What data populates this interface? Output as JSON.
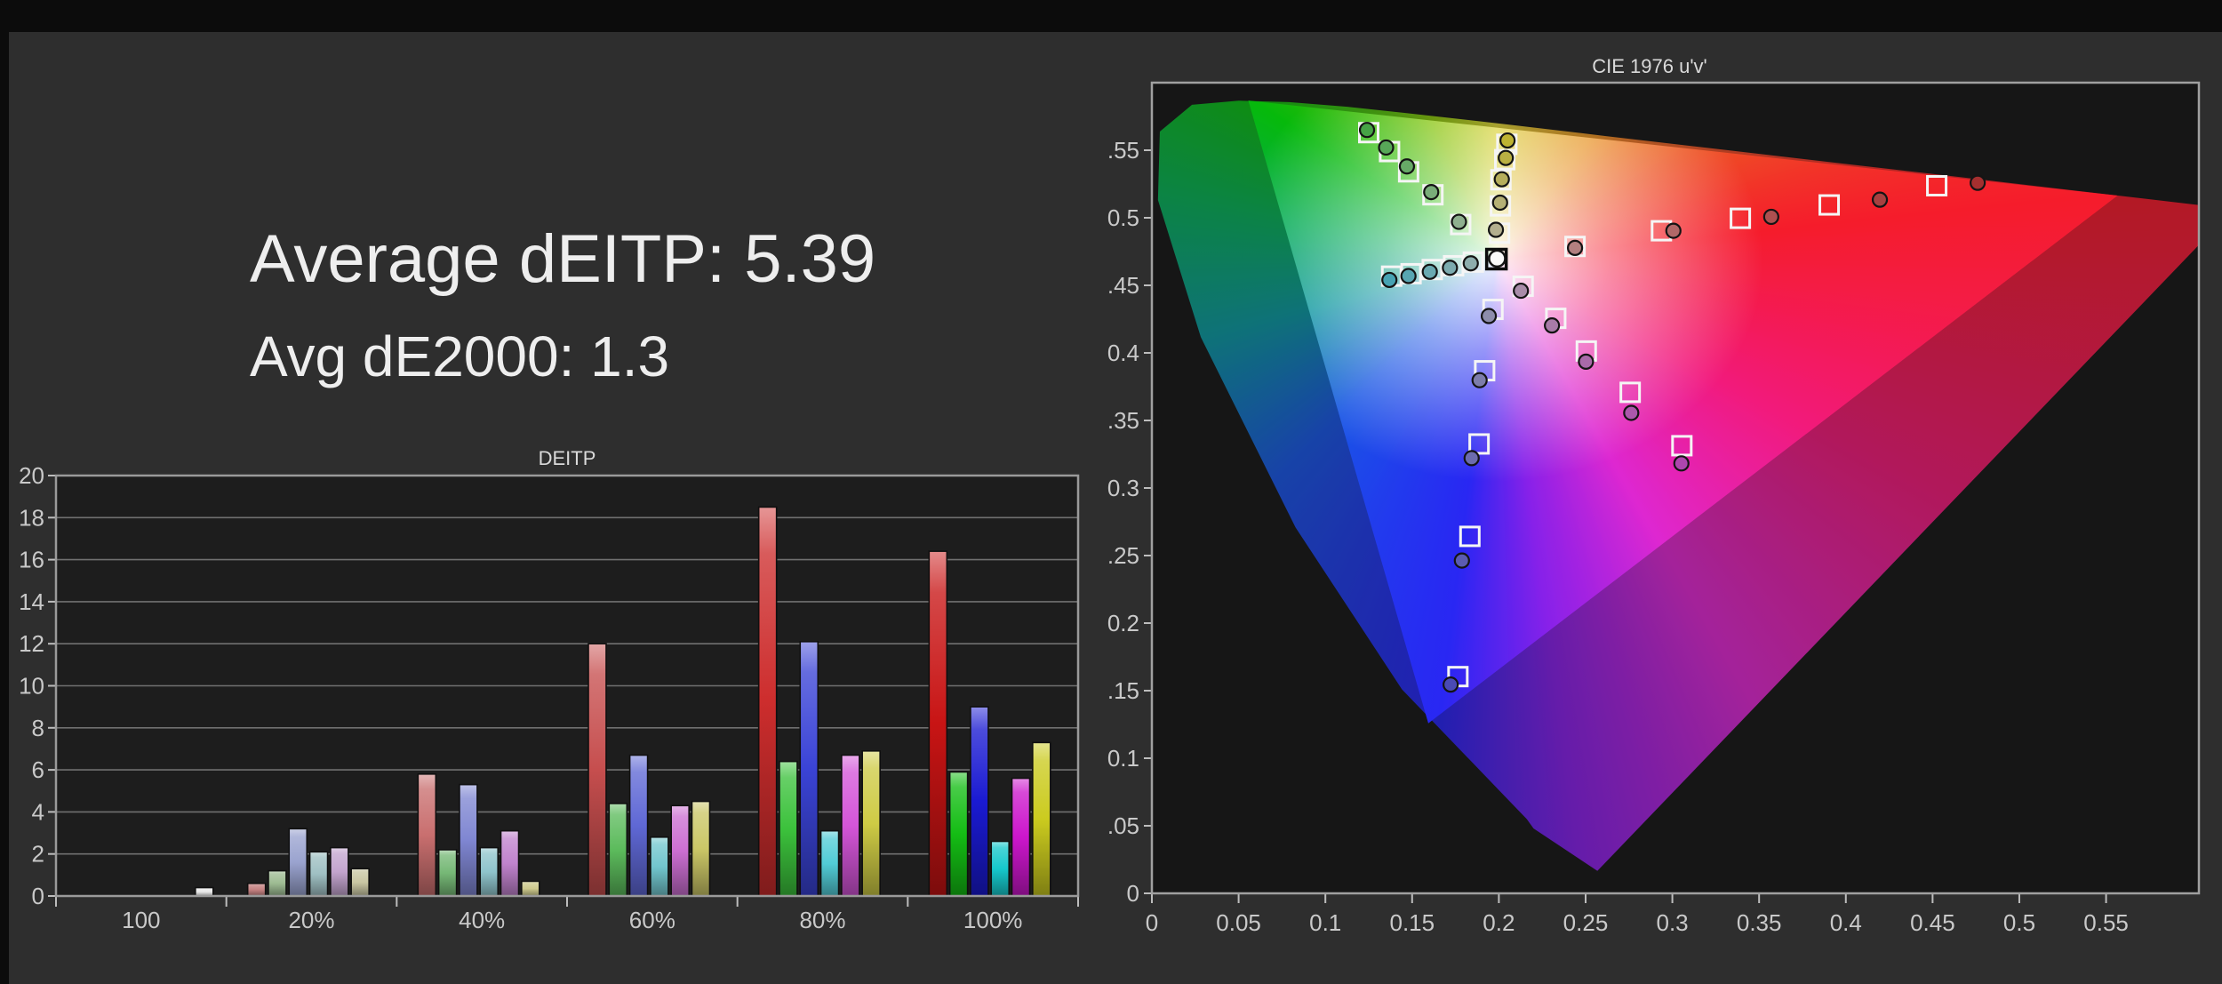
{
  "page": {
    "background": "#0c0c0c",
    "panel_color": "#2e2e2e",
    "top_strip": "#0c0c0c"
  },
  "summary": {
    "line1": "Average dEITP: 5.39",
    "line2": "Avg dE2000: 1.3",
    "avg_deitp": 5.39,
    "avg_de2000": 1.3
  },
  "chart_data": [
    {
      "type": "bar",
      "title": "DEITP",
      "xlabel": "",
      "ylabel": "",
      "ylim": [
        0,
        20
      ],
      "ytick_step": 2,
      "grid": "horizontal",
      "legend": "none",
      "plot_bg": "#1d1d1d",
      "grid_color": "#707070",
      "border_color": "#9a9a9a",
      "categories": [
        "100",
        "20%",
        "40%",
        "60%",
        "80%",
        "100%"
      ],
      "groups": [
        {
          "label": "100",
          "bars": [
            {
              "name": "white",
              "value": 0.4,
              "color": "#e9e9e9",
              "slot": 5.7
            }
          ]
        },
        {
          "label": "20%",
          "bars": [
            {
              "name": "red",
              "value": 0.6,
              "color": "#c58282"
            },
            {
              "name": "green",
              "value": 1.2,
              "color": "#9dbb92"
            },
            {
              "name": "blue",
              "value": 3.2,
              "color": "#9aa3cf"
            },
            {
              "name": "cyan",
              "value": 2.1,
              "color": "#9fc0c3"
            },
            {
              "name": "magenta",
              "value": 2.3,
              "color": "#c3a4ce"
            },
            {
              "name": "yellow",
              "value": 1.3,
              "color": "#c9c6a3"
            }
          ]
        },
        {
          "label": "40%",
          "bars": [
            {
              "name": "red",
              "value": 5.8,
              "color": "#c96f6f"
            },
            {
              "name": "green",
              "value": 2.2,
              "color": "#76b876"
            },
            {
              "name": "blue",
              "value": 5.3,
              "color": "#7f86d2"
            },
            {
              "name": "cyan",
              "value": 2.3,
              "color": "#8fc4cc"
            },
            {
              "name": "magenta",
              "value": 3.1,
              "color": "#c083cd"
            },
            {
              "name": "yellow",
              "value": 0.7,
              "color": "#cdc98c"
            }
          ]
        },
        {
          "label": "60%",
          "bars": [
            {
              "name": "red",
              "value": 12.0,
              "color": "#c64e4e"
            },
            {
              "name": "green",
              "value": 4.4,
              "color": "#5cbb5c"
            },
            {
              "name": "blue",
              "value": 6.7,
              "color": "#5f68d5"
            },
            {
              "name": "cyan",
              "value": 2.8,
              "color": "#72c6ce"
            },
            {
              "name": "magenta",
              "value": 4.3,
              "color": "#cc6fd2"
            },
            {
              "name": "yellow",
              "value": 4.5,
              "color": "#cbc767"
            }
          ]
        },
        {
          "label": "80%",
          "bars": [
            {
              "name": "red",
              "value": 18.5,
              "color": "#cd2d2d"
            },
            {
              "name": "green",
              "value": 6.4,
              "color": "#3cc23c"
            },
            {
              "name": "blue",
              "value": 12.1,
              "color": "#3a43d6"
            },
            {
              "name": "cyan",
              "value": 3.1,
              "color": "#52ccd6"
            },
            {
              "name": "magenta",
              "value": 6.7,
              "color": "#d455d8"
            },
            {
              "name": "yellow",
              "value": 6.9,
              "color": "#cecb45"
            }
          ]
        },
        {
          "label": "100%",
          "bars": [
            {
              "name": "red",
              "value": 16.4,
              "color": "#c81414"
            },
            {
              "name": "green",
              "value": 5.9,
              "color": "#14bd14"
            },
            {
              "name": "blue",
              "value": 9.0,
              "color": "#1a1ad2"
            },
            {
              "name": "cyan",
              "value": 2.6,
              "color": "#16c8cc"
            },
            {
              "name": "magenta",
              "value": 5.6,
              "color": "#cc16cc"
            },
            {
              "name": "yellow",
              "value": 7.3,
              "color": "#cbcb1f"
            }
          ]
        }
      ]
    },
    {
      "type": "scatter",
      "title": "CIE 1976 u'v'",
      "xlim": [
        0,
        0.6035
      ],
      "ylim": [
        0,
        0.6
      ],
      "xticks": [
        0,
        0.05,
        0.1,
        0.15,
        0.2,
        0.25,
        0.3,
        0.35,
        0.4,
        0.45,
        0.5,
        0.55
      ],
      "yticks": [
        0,
        0.05,
        0.1,
        0.15,
        0.2,
        0.25,
        0.3,
        0.35,
        0.4,
        0.45,
        0.5,
        0.55
      ],
      "plot_bg": "#161616",
      "border_color": "#a0a0a0",
      "target_marker": "open-square",
      "measured_marker": "circle",
      "target_stroke": "#f5f5f5",
      "saturation_levels": [
        "20%",
        "40%",
        "60%",
        "80%",
        "100%"
      ],
      "white_point": {
        "target": [
          0.1986,
          0.4694
        ],
        "measured": [
          0.199,
          0.4698
        ],
        "target_stroke": "#0c0c0c",
        "measured_fill": "#fafafa"
      },
      "series": [
        {
          "name": "green",
          "targets": [
            [
              0.178,
              0.495
            ],
            [
              0.162,
              0.517
            ],
            [
              0.148,
              0.534
            ],
            [
              0.137,
              0.549
            ],
            [
              0.125,
              0.563
            ]
          ],
          "measured": [
            [
              0.177,
              0.497
            ],
            [
              0.161,
              0.519
            ],
            [
              0.147,
              0.538
            ],
            [
              0.135,
              0.552
            ],
            [
              0.124,
              0.565
            ]
          ],
          "marker_fill": [
            "#8fb08f",
            "#79ad79",
            "#67aa67",
            "#58a758",
            "#46a346"
          ]
        },
        {
          "name": "yellow",
          "targets": [
            [
              0.2004,
              0.4886
            ],
            [
              0.2009,
              0.5088
            ],
            [
              0.2012,
              0.5281
            ],
            [
              0.2034,
              0.543
            ],
            [
              0.2046,
              0.5544
            ]
          ],
          "measured": [
            [
              0.1983,
              0.4911
            ],
            [
              0.2007,
              0.5112
            ],
            [
              0.2017,
              0.5285
            ],
            [
              0.204,
              0.5443
            ],
            [
              0.205,
              0.5572
            ]
          ],
          "marker_fill": [
            "#b3af8e",
            "#b5b075",
            "#b6ae5b",
            "#bab043",
            "#beb332"
          ]
        },
        {
          "name": "red",
          "targets": [
            [
              0.2439,
              0.4788
            ],
            [
              0.2937,
              0.4904
            ],
            [
              0.3392,
              0.4996
            ],
            [
              0.3904,
              0.5095
            ],
            [
              0.4524,
              0.5237
            ]
          ],
          "measured": [
            [
              0.2439,
              0.4777
            ],
            [
              0.3006,
              0.4904
            ],
            [
              0.357,
              0.5007
            ],
            [
              0.4196,
              0.5134
            ],
            [
              0.476,
              0.5259
            ]
          ],
          "marker_fill": [
            "#b28080",
            "#b16868",
            "#ae5050",
            "#a84040",
            "#a52f2f"
          ]
        },
        {
          "name": "cyan",
          "targets": [
            [
              0.1853,
              0.4672
            ],
            [
              0.1739,
              0.4645
            ],
            [
              0.1616,
              0.4617
            ],
            [
              0.1494,
              0.4586
            ],
            [
              0.1382,
              0.4568
            ]
          ],
          "measured": [
            [
              0.1838,
              0.4663
            ],
            [
              0.1718,
              0.463
            ],
            [
              0.1602,
              0.46
            ],
            [
              0.1479,
              0.4569
            ],
            [
              0.1369,
              0.454
            ]
          ],
          "marker_fill": [
            "#8dadad",
            "#7cabaf",
            "#6aa9b1",
            "#58a6b2",
            "#47a3b3"
          ]
        },
        {
          "name": "magenta",
          "targets": [
            [
              0.214,
              0.4493
            ],
            [
              0.2328,
              0.4256
            ],
            [
              0.2504,
              0.4014
            ],
            [
              0.2757,
              0.3708
            ],
            [
              0.3055,
              0.3313
            ]
          ],
          "measured": [
            [
              0.2127,
              0.446
            ],
            [
              0.2306,
              0.4203
            ],
            [
              0.2502,
              0.3935
            ],
            [
              0.2763,
              0.3556
            ],
            [
              0.3052,
              0.3182
            ]
          ],
          "marker_fill": [
            "#a98ca9",
            "#a87ba8",
            "#a96aa9",
            "#ab58ab",
            "#ad46ad"
          ]
        },
        {
          "name": "blue",
          "targets": [
            [
              0.1966,
              0.4322
            ],
            [
              0.1918,
              0.3868
            ],
            [
              0.1886,
              0.3326
            ],
            [
              0.1833,
              0.2642
            ],
            [
              0.1764,
              0.1604
            ]
          ],
          "measured": [
            [
              0.1942,
              0.4273
            ],
            [
              0.1889,
              0.3798
            ],
            [
              0.1843,
              0.3221
            ],
            [
              0.1787,
              0.2463
            ],
            [
              0.1722,
              0.1545
            ]
          ],
          "marker_fill": [
            "#8d8dab",
            "#7d7dab",
            "#6c6cae",
            "#5b5bb1",
            "#4a4ab5"
          ]
        }
      ],
      "locus": [
        [
          0.2568,
          0.0166
        ],
        [
          0.22,
          0.048
        ],
        [
          0.2161,
          0.0549
        ],
        [
          0.1441,
          0.151
        ],
        [
          0.0828,
          0.2708
        ],
        [
          0.0282,
          0.4117
        ],
        [
          0.0035,
          0.5131
        ],
        [
          0.0046,
          0.5638
        ],
        [
          0.0231,
          0.5836
        ],
        [
          0.0501,
          0.5867
        ],
        [
          0.0792,
          0.5856
        ],
        [
          0.1127,
          0.5821
        ],
        [
          0.1531,
          0.5766
        ],
        [
          0.2026,
          0.5694
        ],
        [
          0.2623,
          0.5604
        ],
        [
          0.3315,
          0.5501
        ],
        [
          0.4035,
          0.5393
        ],
        [
          0.4692,
          0.5296
        ],
        [
          0.5203,
          0.5219
        ],
        [
          0.6005,
          0.5099
        ],
        [
          0.6234,
          0.5065
        ]
      ],
      "gamut_triangle": [
        [
          0.0556,
          0.5868
        ],
        [
          0.5566,
          0.5165
        ],
        [
          0.1593,
          0.1258
        ]
      ],
      "spectrum_stops": [
        {
          "deg": 0,
          "color": "#d6ce3c"
        },
        {
          "deg": 38,
          "color": "#e0912a"
        },
        {
          "deg": 62,
          "color": "#e2552c"
        },
        {
          "deg": 84,
          "color": "#e6202e"
        },
        {
          "deg": 118,
          "color": "#e31f76"
        },
        {
          "deg": 150,
          "color": "#d22cc6"
        },
        {
          "deg": 172,
          "color": "#8224da"
        },
        {
          "deg": 187,
          "color": "#2a28e2"
        },
        {
          "deg": 225,
          "color": "#1e55d8"
        },
        {
          "deg": 255,
          "color": "#12929a"
        },
        {
          "deg": 280,
          "color": "#10a85a"
        },
        {
          "deg": 303,
          "color": "#12b416"
        },
        {
          "deg": 336,
          "color": "#8ac013"
        },
        {
          "deg": 360,
          "color": "#d6ce3c"
        }
      ]
    }
  ]
}
